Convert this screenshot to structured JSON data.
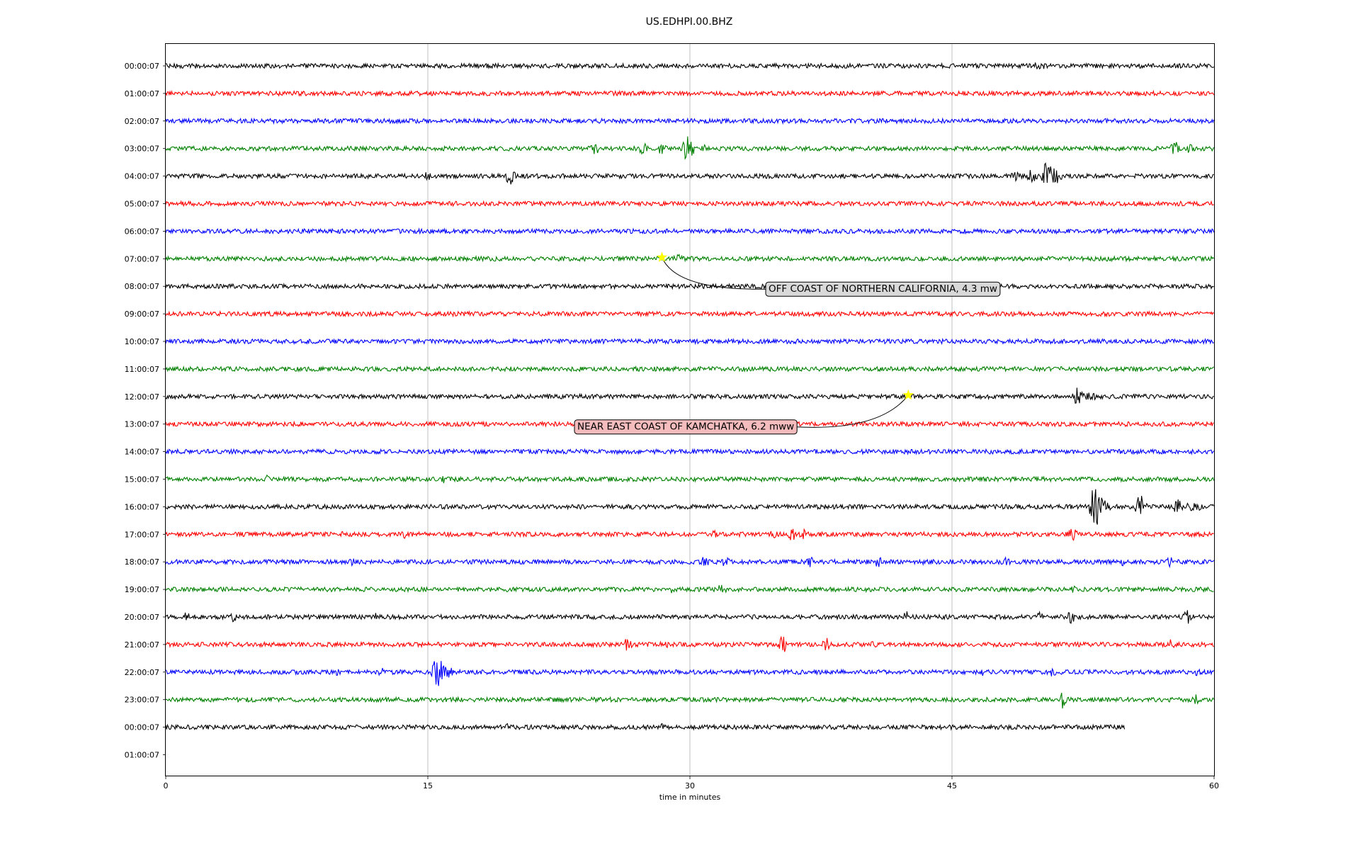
{
  "chart_data": {
    "type": "line",
    "title": "US.EDHPI.00.BHZ",
    "xlabel": "time in minutes",
    "xlim": [
      0,
      60
    ],
    "x_ticks": [
      0,
      15,
      30,
      45,
      60
    ],
    "x_tick_labels": [
      "0",
      "15",
      "30",
      "45",
      "60"
    ],
    "grid": "vertical lines at x ticks",
    "color_cycle": [
      "#000000",
      "#ff0000",
      "#0000ff",
      "#008000"
    ],
    "rows": [
      {
        "label": "00:00:07",
        "color": "#000000",
        "length_min": 60,
        "events": [
          [
            50,
            10
          ]
        ]
      },
      {
        "label": "01:00:07",
        "color": "#ff0000",
        "length_min": 60,
        "events": []
      },
      {
        "label": "02:00:07",
        "color": "#0000ff",
        "length_min": 60,
        "events": []
      },
      {
        "label": "03:00:07",
        "color": "#008000",
        "length_min": 60,
        "events": [
          [
            24.6,
            12
          ],
          [
            27.3,
            10
          ],
          [
            28.4,
            10
          ],
          [
            29.9,
            30
          ],
          [
            30.8,
            8
          ],
          [
            57.8,
            14
          ],
          [
            58.6,
            8
          ]
        ]
      },
      {
        "label": "04:00:07",
        "color": "#000000",
        "length_min": 60,
        "events": [
          [
            15,
            8
          ],
          [
            19.7,
            14
          ],
          [
            48.6,
            8
          ],
          [
            49.6,
            14
          ],
          [
            50.4,
            22
          ],
          [
            50.7,
            16
          ],
          [
            51.0,
            12
          ]
        ]
      },
      {
        "label": "05:00:07",
        "color": "#ff0000",
        "length_min": 60,
        "events": []
      },
      {
        "label": "06:00:07",
        "color": "#0000ff",
        "length_min": 60,
        "events": []
      },
      {
        "label": "07:00:07",
        "color": "#008000",
        "length_min": 60,
        "events": [
          [
            29.3,
            8
          ],
          [
            29.6,
            6
          ]
        ]
      },
      {
        "label": "08:00:07",
        "color": "#000000",
        "length_min": 60,
        "events": []
      },
      {
        "label": "09:00:07",
        "color": "#ff0000",
        "length_min": 60,
        "events": []
      },
      {
        "label": "10:00:07",
        "color": "#0000ff",
        "length_min": 60,
        "events": []
      },
      {
        "label": "11:00:07",
        "color": "#008000",
        "length_min": 60,
        "events": []
      },
      {
        "label": "12:00:07",
        "color": "#000000",
        "length_min": 60,
        "events": [
          [
            52.2,
            14
          ],
          [
            52.7,
            10
          ],
          [
            53.1,
            6
          ]
        ]
      },
      {
        "label": "13:00:07",
        "color": "#ff0000",
        "length_min": 60,
        "events": []
      },
      {
        "label": "14:00:07",
        "color": "#0000ff",
        "length_min": 60,
        "events": []
      },
      {
        "label": "15:00:07",
        "color": "#008000",
        "length_min": 60,
        "events": [
          [
            5.8,
            6
          ],
          [
            15.9,
            6
          ]
        ]
      },
      {
        "label": "16:00:07",
        "color": "#000000",
        "length_min": 60,
        "events": [
          [
            53.2,
            38
          ],
          [
            53.5,
            16
          ],
          [
            53.8,
            10
          ],
          [
            55.8,
            20
          ],
          [
            57.9,
            12
          ],
          [
            58.6,
            10
          ],
          [
            59.0,
            8
          ]
        ]
      },
      {
        "label": "17:00:07",
        "color": "#ff0000",
        "length_min": 60,
        "events": [
          [
            10.0,
            6
          ],
          [
            13.7,
            8
          ],
          [
            31.4,
            8
          ],
          [
            34.8,
            8
          ],
          [
            35.8,
            12
          ],
          [
            36.5,
            8
          ],
          [
            51.9,
            10
          ]
        ]
      },
      {
        "label": "18:00:07",
        "color": "#0000ff",
        "length_min": 60,
        "events": [
          [
            10.7,
            6
          ],
          [
            30.8,
            10
          ],
          [
            32.0,
            10
          ],
          [
            36.9,
            8
          ],
          [
            40.8,
            10
          ],
          [
            43.2,
            6
          ],
          [
            48.1,
            8
          ],
          [
            54.8,
            6
          ],
          [
            57.5,
            8
          ]
        ]
      },
      {
        "label": "19:00:07",
        "color": "#008000",
        "length_min": 60,
        "events": [
          [
            29.0,
            6
          ],
          [
            31.8,
            10
          ],
          [
            52.0,
            6
          ]
        ]
      },
      {
        "label": "20:00:07",
        "color": "#000000",
        "length_min": 60,
        "events": [
          [
            1.2,
            8
          ],
          [
            3.9,
            8
          ],
          [
            12.0,
            6
          ],
          [
            18.1,
            6
          ],
          [
            42.4,
            10
          ],
          [
            50.0,
            8
          ],
          [
            51.8,
            10
          ],
          [
            58.5,
            12
          ]
        ]
      },
      {
        "label": "21:00:07",
        "color": "#ff0000",
        "length_min": 60,
        "events": [
          [
            26.4,
            10
          ],
          [
            28.5,
            8
          ],
          [
            35.3,
            14
          ],
          [
            37.9,
            14
          ],
          [
            40.6,
            8
          ],
          [
            57.5,
            8
          ]
        ]
      },
      {
        "label": "22:00:07",
        "color": "#0000ff",
        "length_min": 60,
        "events": [
          [
            9.8,
            6
          ],
          [
            12.3,
            8
          ],
          [
            15.5,
            30
          ],
          [
            15.8,
            18
          ],
          [
            16.2,
            10
          ],
          [
            46.8,
            6
          ],
          [
            50.8,
            8
          ],
          [
            59.0,
            6
          ]
        ]
      },
      {
        "label": "23:00:07",
        "color": "#008000",
        "length_min": 60,
        "events": [
          [
            51.3,
            14
          ],
          [
            59.0,
            8
          ]
        ]
      },
      {
        "label": "00:00:07",
        "color": "#000000",
        "length_min": 54.9,
        "events": [
          [
            19.5,
            6
          ],
          [
            28.4,
            6
          ]
        ]
      },
      {
        "label": "01:00:07",
        "color": "#ff0000",
        "length_min": 0,
        "events": []
      }
    ],
    "annotations": [
      {
        "text": "OFF COAST OF NORTHERN CALIFORNIA, 4.3 mw",
        "row_index": 7,
        "x_min": 28.4,
        "marker": "star",
        "marker_color": "#ffff00",
        "box_fill": "#d9d9d9"
      },
      {
        "text": "NEAR EAST COAST OF KAMCHATKA, 6.2 mww",
        "row_index": 12,
        "x_min": 42.5,
        "marker": "star",
        "marker_color": "#ffff00",
        "box_fill": "#f4bcbc"
      }
    ]
  }
}
